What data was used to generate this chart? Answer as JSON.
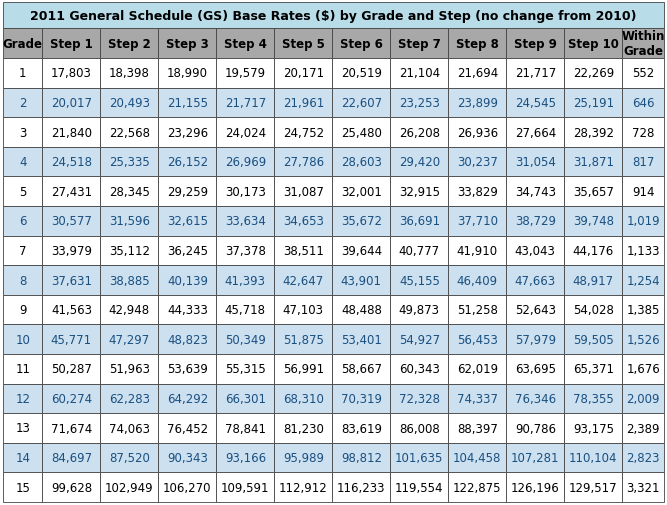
{
  "title": "2011 General Schedule (GS) Base Rates ($) by Grade and Step (no change from 2010)",
  "columns": [
    "Grade",
    "Step 1",
    "Step 2",
    "Step 3",
    "Step 4",
    "Step 5",
    "Step 6",
    "Step 7",
    "Step 8",
    "Step 9",
    "Step 10",
    "Within\nGrade"
  ],
  "rows": [
    [
      1,
      17803,
      18398,
      18990,
      19579,
      20171,
      20519,
      21104,
      21694,
      21717,
      22269,
      552
    ],
    [
      2,
      20017,
      20493,
      21155,
      21717,
      21961,
      22607,
      23253,
      23899,
      24545,
      25191,
      646
    ],
    [
      3,
      21840,
      22568,
      23296,
      24024,
      24752,
      25480,
      26208,
      26936,
      27664,
      28392,
      728
    ],
    [
      4,
      24518,
      25335,
      26152,
      26969,
      27786,
      28603,
      29420,
      30237,
      31054,
      31871,
      817
    ],
    [
      5,
      27431,
      28345,
      29259,
      30173,
      31087,
      32001,
      32915,
      33829,
      34743,
      35657,
      914
    ],
    [
      6,
      30577,
      31596,
      32615,
      33634,
      34653,
      35672,
      36691,
      37710,
      38729,
      39748,
      1019
    ],
    [
      7,
      33979,
      35112,
      36245,
      37378,
      38511,
      39644,
      40777,
      41910,
      43043,
      44176,
      1133
    ],
    [
      8,
      37631,
      38885,
      40139,
      41393,
      42647,
      43901,
      45155,
      46409,
      47663,
      48917,
      1254
    ],
    [
      9,
      41563,
      42948,
      44333,
      45718,
      47103,
      48488,
      49873,
      51258,
      52643,
      54028,
      1385
    ],
    [
      10,
      45771,
      47297,
      48823,
      50349,
      51875,
      53401,
      54927,
      56453,
      57979,
      59505,
      1526
    ],
    [
      11,
      50287,
      51963,
      53639,
      55315,
      56991,
      58667,
      60343,
      62019,
      63695,
      65371,
      1676
    ],
    [
      12,
      60274,
      62283,
      64292,
      66301,
      68310,
      70319,
      72328,
      74337,
      76346,
      78355,
      2009
    ],
    [
      13,
      71674,
      74063,
      76452,
      78841,
      81230,
      83619,
      86008,
      88397,
      90786,
      93175,
      2389
    ],
    [
      14,
      84697,
      87520,
      90343,
      93166,
      95989,
      98812,
      101635,
      104458,
      107281,
      110104,
      2823
    ],
    [
      15,
      99628,
      102949,
      106270,
      109591,
      112912,
      116233,
      119554,
      122875,
      126196,
      129517,
      3321
    ]
  ],
  "title_bg": "#b8dce8",
  "header_bg": "#a8a8a8",
  "row_bg_odd": "#ffffff",
  "row_bg_even": "#cce0f0",
  "title_fontsize": 9.0,
  "cell_fontsize": 8.5,
  "header_fontsize": 8.5,
  "text_color_odd": "#000000",
  "text_color_even": "#1a5080",
  "border_color": "#444444",
  "col_weights": [
    0.68,
    1.0,
    1.0,
    1.0,
    1.0,
    1.0,
    1.0,
    1.0,
    1.0,
    1.0,
    1.0,
    0.72
  ]
}
